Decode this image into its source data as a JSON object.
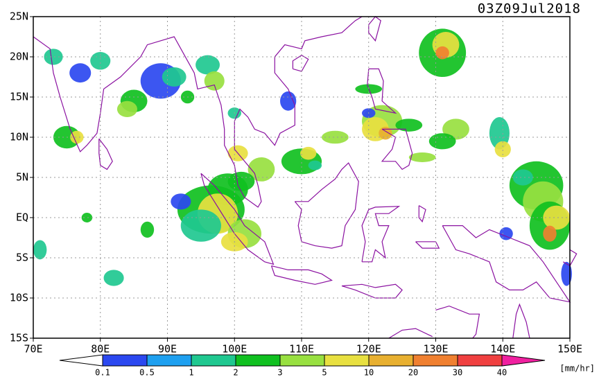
{
  "header": {
    "timestamp": "03Z09Jul2018"
  },
  "map": {
    "lon_labels": [
      "70E",
      "80E",
      "90E",
      "100E",
      "110E",
      "120E",
      "130E",
      "140E",
      "150E"
    ],
    "lat_labels": [
      "25N",
      "20N",
      "15N",
      "10N",
      "5N",
      "EQ",
      "5S",
      "10S",
      "15S"
    ]
  },
  "colorbar": {
    "labels": [
      "0.1",
      "0.5",
      "1",
      "2",
      "3",
      "5",
      "10",
      "20",
      "30",
      "40"
    ],
    "colors": [
      "#ffffff",
      "#2b48f0",
      "#1ea0f0",
      "#20c890",
      "#10c020",
      "#98e040",
      "#e8e040",
      "#e8b030",
      "#f08030",
      "#f04040",
      "#f020a0"
    ],
    "unit": "[mm/hr]"
  }
}
